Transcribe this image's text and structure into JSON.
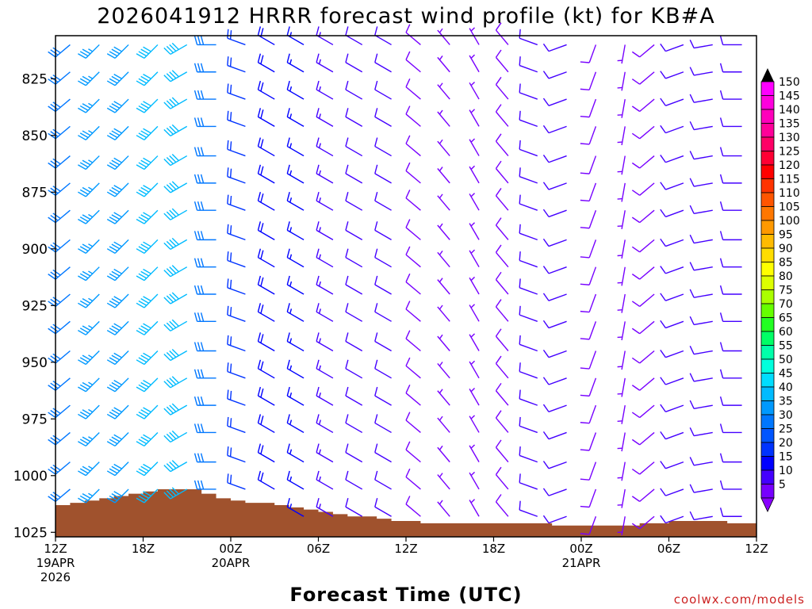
{
  "chart_data": {
    "type": "wind-barb-time-height",
    "title": "2026041912 HRRR forecast wind profile (kt) for KB#A",
    "xlabel": "Forecast Time (UTC)",
    "credit": "coolwx.com/models",
    "units": "kt",
    "x_range_hours": [
      0,
      48
    ],
    "y_range_hPa": [
      806,
      1027
    ],
    "y_ticks": [
      825,
      850,
      875,
      900,
      925,
      950,
      975,
      1000,
      1025
    ],
    "x_ticks": [
      {
        "hour": 0,
        "lines": [
          "12Z",
          "19APR",
          "2026"
        ]
      },
      {
        "hour": 6,
        "lines": [
          "18Z"
        ]
      },
      {
        "hour": 12,
        "lines": [
          "00Z",
          "20APR"
        ]
      },
      {
        "hour": 18,
        "lines": [
          "06Z"
        ]
      },
      {
        "hour": 24,
        "lines": [
          "12Z"
        ]
      },
      {
        "hour": 30,
        "lines": [
          "18Z"
        ]
      },
      {
        "hour": 36,
        "lines": [
          "00Z",
          "21APR"
        ]
      },
      {
        "hour": 42,
        "lines": [
          "06Z"
        ]
      },
      {
        "hour": 48,
        "lines": [
          "12Z"
        ]
      }
    ],
    "barb_hours": [
      1,
      3,
      5,
      7,
      9,
      11,
      13,
      15,
      17,
      19,
      21,
      23,
      25,
      27,
      29,
      31,
      33,
      35,
      37,
      39,
      41,
      43,
      45,
      47
    ],
    "barb_levels_hPa": [
      810,
      822,
      834,
      846,
      859,
      871,
      883,
      896,
      908,
      920,
      932,
      945,
      957,
      969,
      981,
      994,
      1006,
      1018
    ],
    "surface_pressure": {
      "hours": [
        0,
        1,
        2,
        3,
        4,
        5,
        6,
        7,
        8,
        9,
        10,
        11,
        12,
        13,
        14,
        15,
        16,
        17,
        18,
        19,
        20,
        21,
        22,
        23,
        24,
        25,
        26,
        27,
        28,
        29,
        30,
        31,
        32,
        33,
        34,
        35,
        36,
        37,
        38,
        39,
        40,
        41,
        42,
        43,
        44,
        45,
        46,
        47,
        48
      ],
      "hPa": [
        1013,
        1012,
        1011,
        1010,
        1009,
        1008,
        1007,
        1006,
        1006,
        1006,
        1008,
        1010,
        1011,
        1012,
        1012,
        1013,
        1014,
        1015,
        1016,
        1017,
        1018,
        1018,
        1019,
        1020,
        1020,
        1021,
        1021,
        1021,
        1021,
        1021,
        1021,
        1021,
        1021,
        1021,
        1022,
        1022,
        1022,
        1022,
        1022,
        1022,
        1021,
        1021,
        1020,
        1020,
        1020,
        1020,
        1021,
        1021,
        1022
      ],
      "color": "#a0522d"
    },
    "colorbar": {
      "labels": [
        "150",
        "145",
        "140",
        "135",
        "130",
        "125",
        "120",
        "115",
        "110",
        "105",
        "100",
        "95",
        "90",
        "85",
        "80",
        "75",
        "70",
        "65",
        "60",
        "55",
        "50",
        "45",
        "40",
        "35",
        "30",
        "25",
        "20",
        "15",
        "10",
        "5"
      ],
      "colors": [
        "#ff00ff",
        "#ff00dd",
        "#ff00bb",
        "#ff0099",
        "#ff0066",
        "#ff0033",
        "#ff0000",
        "#ff3300",
        "#ff5500",
        "#ff7700",
        "#ff9900",
        "#ffbb00",
        "#ffdd00",
        "#ffff00",
        "#ddff00",
        "#aaff00",
        "#66ff00",
        "#22ff22",
        "#00ff66",
        "#00ffaa",
        "#00ffdd",
        "#00ddff",
        "#00bbff",
        "#0099ff",
        "#0077ff",
        "#0055ff",
        "#0033ff",
        "#0000ff",
        "#4400ff",
        "#7700ff"
      ],
      "top_arrow_color": "#000000",
      "bottom_arrow_color": "#8800ff"
    },
    "wind_speed_kt_by_time": [
      32,
      35,
      38,
      42,
      42,
      32,
      22,
      19,
      17,
      14,
      12,
      10,
      8,
      7,
      6,
      8,
      10,
      11,
      9,
      7,
      8,
      10,
      10,
      10
    ],
    "wind_direction_deg_by_time": [
      230,
      225,
      225,
      225,
      240,
      270,
      290,
      300,
      300,
      300,
      300,
      300,
      310,
      320,
      330,
      320,
      290,
      250,
      200,
      190,
      230,
      250,
      260,
      270
    ]
  }
}
